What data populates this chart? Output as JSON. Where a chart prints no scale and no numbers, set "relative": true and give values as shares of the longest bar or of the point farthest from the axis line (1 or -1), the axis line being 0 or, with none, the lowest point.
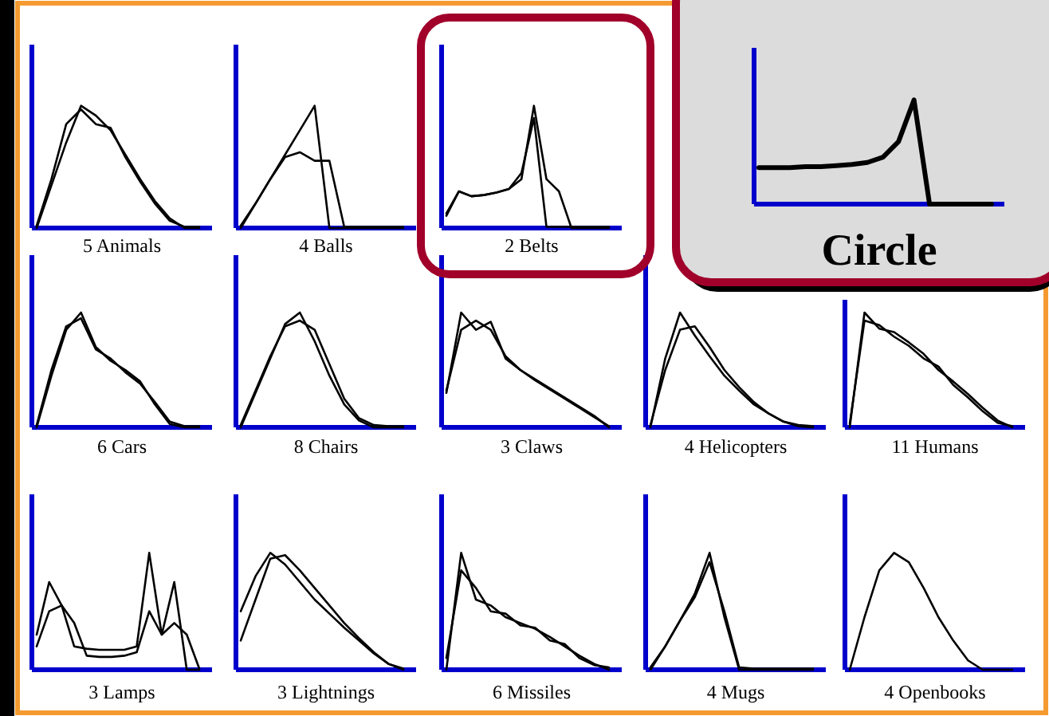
{
  "chart_data": [
    {
      "type": "line",
      "relative": true,
      "xlabel": "5 Animals",
      "categories": [
        null,
        null,
        null,
        null,
        null,
        null,
        null,
        null,
        null,
        null,
        null,
        null
      ],
      "series": [
        {
          "color": "#000000",
          "values": [
            0,
            0.35,
            0.7,
            1,
            0.92,
            0.8,
            0.6,
            0.4,
            0.22,
            0.08,
            0,
            0
          ]
        },
        {
          "color": "#000000",
          "values": [
            0.02,
            0.4,
            0.85,
            0.97,
            0.85,
            0.82,
            0.58,
            0.38,
            0.2,
            0.06,
            0.01,
            0.01
          ]
        }
      ]
    },
    {
      "type": "line",
      "relative": true,
      "xlabel": "4 Balls",
      "categories": [
        null,
        null,
        null,
        null,
        null,
        null,
        null,
        null,
        null,
        null,
        null,
        null
      ],
      "series": [
        {
          "color": "#000000",
          "values": [
            0,
            0.2,
            0.4,
            0.6,
            0.8,
            1,
            0,
            0,
            0,
            0,
            0,
            0
          ]
        },
        {
          "color": "#000000",
          "values": [
            0.02,
            0.2,
            0.4,
            0.58,
            0.62,
            0.55,
            0.55,
            0.01,
            0.01,
            0.01,
            0.01,
            0.01
          ]
        }
      ]
    },
    {
      "type": "line",
      "relative": true,
      "xlabel": "2 Belts",
      "categories": [
        null,
        null,
        null,
        null,
        null,
        null,
        null,
        null,
        null,
        null,
        null,
        null,
        null,
        null
      ],
      "series": [
        {
          "color": "#000000",
          "values": [
            0.1,
            0.3,
            0.26,
            0.27,
            0.29,
            0.32,
            0.4,
            1,
            0.4,
            0.3,
            0,
            0,
            0,
            0
          ]
        },
        {
          "color": "#000000",
          "values": [
            0.12,
            0.3,
            0.26,
            0.27,
            0.29,
            0.32,
            0.45,
            0.9,
            0.01,
            0.01,
            0.01,
            0.01,
            0.01,
            0.01
          ]
        }
      ]
    },
    {
      "type": "line",
      "relative": true,
      "xlabel": "6 Cars",
      "categories": [
        null,
        null,
        null,
        null,
        null,
        null,
        null,
        null,
        null,
        null,
        null,
        null
      ],
      "series": [
        {
          "color": "#000000",
          "values": [
            0,
            0.45,
            0.85,
            1,
            0.7,
            0.58,
            0.5,
            0.4,
            0.2,
            0.03,
            0,
            0
          ]
        },
        {
          "color": "#000000",
          "values": [
            0.02,
            0.5,
            0.88,
            0.95,
            0.68,
            0.6,
            0.48,
            0.38,
            0.22,
            0.05,
            0.01,
            0.01
          ]
        }
      ]
    },
    {
      "type": "line",
      "relative": true,
      "xlabel": "8 Chairs",
      "categories": [
        null,
        null,
        null,
        null,
        null,
        null,
        null,
        null,
        null,
        null,
        null,
        null
      ],
      "series": [
        {
          "color": "#000000",
          "values": [
            0,
            0.3,
            0.6,
            0.9,
            1,
            0.75,
            0.45,
            0.2,
            0.06,
            0,
            0,
            0
          ]
        },
        {
          "color": "#000000",
          "values": [
            0.02,
            0.32,
            0.62,
            0.88,
            0.93,
            0.85,
            0.55,
            0.25,
            0.08,
            0.02,
            0.01,
            0.01
          ]
        }
      ]
    },
    {
      "type": "line",
      "relative": true,
      "xlabel": "3 Claws",
      "categories": [
        null,
        null,
        null,
        null,
        null,
        null,
        null,
        null,
        null,
        null,
        null,
        null
      ],
      "series": [
        {
          "color": "#000000",
          "values": [
            0.3,
            1,
            0.85,
            0.92,
            0.6,
            0.5,
            0.42,
            0.34,
            0.26,
            0.18,
            0.1,
            0
          ]
        },
        {
          "color": "#000000",
          "values": [
            0.32,
            0.85,
            0.93,
            0.85,
            0.62,
            0.5,
            0.41,
            0.33,
            0.25,
            0.17,
            0.09,
            0.01
          ]
        }
      ]
    },
    {
      "type": "line",
      "relative": true,
      "xlabel": "4 Helicopters",
      "categories": [
        null,
        null,
        null,
        null,
        null,
        null,
        null,
        null,
        null,
        null,
        null,
        null
      ],
      "series": [
        {
          "color": "#000000",
          "values": [
            0,
            0.6,
            1,
            0.8,
            0.62,
            0.45,
            0.32,
            0.2,
            0.12,
            0.05,
            0.01,
            0
          ]
        },
        {
          "color": "#000000",
          "values": [
            0.02,
            0.5,
            0.85,
            0.88,
            0.7,
            0.5,
            0.35,
            0.22,
            0.12,
            0.05,
            0.02,
            0.01
          ]
        }
      ]
    },
    {
      "type": "line",
      "relative": true,
      "xlabel": "11 Humans",
      "categories": [
        null,
        null,
        null,
        null,
        null,
        null,
        null,
        null,
        null,
        null,
        null,
        null
      ],
      "series": [
        {
          "color": "#000000",
          "values": [
            0,
            1,
            0.86,
            0.83,
            0.74,
            0.64,
            0.5,
            0.4,
            0.29,
            0.17,
            0.06,
            0
          ]
        },
        {
          "color": "#000000",
          "values": [
            0.03,
            0.93,
            0.89,
            0.79,
            0.71,
            0.6,
            0.53,
            0.37,
            0.26,
            0.14,
            0.04,
            0.01
          ]
        }
      ]
    },
    {
      "type": "line",
      "relative": true,
      "xlabel": "3 Lamps",
      "categories": [
        null,
        null,
        null,
        null,
        null,
        null,
        null,
        null,
        null,
        null,
        null,
        null,
        null,
        null
      ],
      "series": [
        {
          "color": "#000000",
          "values": [
            0.3,
            0.75,
            0.55,
            0.2,
            0.18,
            0.17,
            0.17,
            0.17,
            0.2,
            1,
            0.3,
            0.75,
            0,
            0
          ]
        },
        {
          "color": "#000000",
          "values": [
            0.2,
            0.5,
            0.55,
            0.4,
            0.12,
            0.11,
            0.11,
            0.12,
            0.15,
            0.5,
            0.3,
            0.4,
            0.3,
            0.01
          ]
        }
      ]
    },
    {
      "type": "line",
      "relative": true,
      "xlabel": "3 Lightnings",
      "categories": [
        null,
        null,
        null,
        null,
        null,
        null,
        null,
        null,
        null,
        null,
        null,
        null
      ],
      "series": [
        {
          "color": "#000000",
          "values": [
            0.5,
            0.8,
            1,
            0.9,
            0.75,
            0.6,
            0.48,
            0.36,
            0.25,
            0.14,
            0.05,
            0
          ]
        },
        {
          "color": "#000000",
          "values": [
            0.25,
            0.6,
            0.95,
            0.98,
            0.85,
            0.7,
            0.55,
            0.4,
            0.27,
            0.15,
            0.05,
            0.01
          ]
        }
      ]
    },
    {
      "type": "line",
      "relative": true,
      "xlabel": "6 Missiles",
      "categories": [
        null,
        null,
        null,
        null,
        null,
        null,
        null,
        null,
        null,
        null,
        null,
        null
      ],
      "series": [
        {
          "color": "#000000",
          "values": [
            0,
            1,
            0.6,
            0.55,
            0.45,
            0.4,
            0.35,
            0.28,
            0.2,
            0.12,
            0.05,
            0
          ]
        },
        {
          "color": "#000000",
          "values": [
            0.1,
            0.85,
            0.7,
            0.5,
            0.48,
            0.38,
            0.36,
            0.25,
            0.22,
            0.1,
            0.04,
            0.02
          ]
        }
      ]
    },
    {
      "type": "line",
      "relative": true,
      "xlabel": "4 Mugs",
      "categories": [
        null,
        null,
        null,
        null,
        null,
        null,
        null,
        null,
        null,
        null,
        null,
        null
      ],
      "series": [
        {
          "color": "#000000",
          "values": [
            0,
            0.2,
            0.42,
            0.65,
            1,
            0.45,
            0,
            0,
            0,
            0,
            0,
            0
          ]
        },
        {
          "color": "#000000",
          "values": [
            0.02,
            0.2,
            0.42,
            0.62,
            0.92,
            0.5,
            0.02,
            0.01,
            0.01,
            0.01,
            0.01,
            0.01
          ]
        }
      ]
    },
    {
      "type": "line",
      "relative": true,
      "xlabel": "4 Openbooks",
      "categories": [
        null,
        null,
        null,
        null,
        null,
        null,
        null,
        null,
        null,
        null,
        null,
        null
      ],
      "series": [
        {
          "color": "#000000",
          "values": [
            0,
            0.45,
            0.85,
            1,
            0.92,
            0.7,
            0.45,
            0.25,
            0.08,
            0,
            0,
            0
          ]
        }
      ]
    },
    {
      "type": "line",
      "relative": true,
      "xlabel": "Circle",
      "categories": [
        null,
        null,
        null,
        null,
        null,
        null,
        null,
        null,
        null,
        null,
        null,
        null,
        null,
        null,
        null,
        null
      ],
      "series": [
        {
          "color": "#000000",
          "values": [
            0.35,
            0.35,
            0.35,
            0.36,
            0.36,
            0.37,
            0.38,
            0.4,
            0.45,
            0.6,
            1,
            0,
            0,
            0,
            0,
            0
          ]
        }
      ]
    }
  ]
}
